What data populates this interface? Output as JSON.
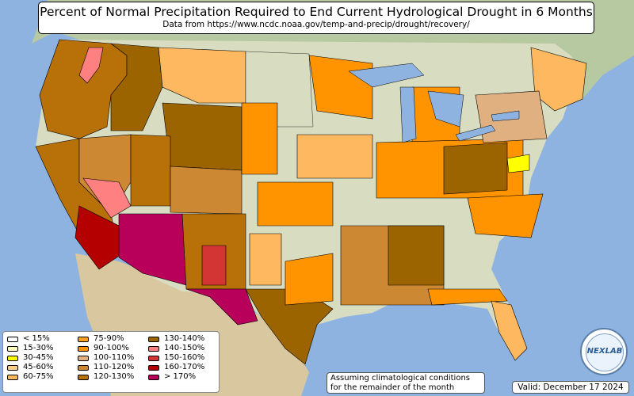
{
  "header": {
    "title": "Percent of Normal Precipitation Required to End Current Hydrological Drought in 6 Months",
    "subtitle": "Data from https://www.ncdc.noaa.gov/temp-and-precip/drought/recovery/"
  },
  "legend": {
    "items": [
      {
        "label": "< 15%",
        "color": "#ffffff"
      },
      {
        "label": "15-30%",
        "color": "#ffffc0"
      },
      {
        "label": "30-45%",
        "color": "#ffff00"
      },
      {
        "label": "45-60%",
        "color": "#fcd08a"
      },
      {
        "label": "60-75%",
        "color": "#fdb860"
      },
      {
        "label": "75-90%",
        "color": "#ffa01e"
      },
      {
        "label": "90-100%",
        "color": "#ff9400"
      },
      {
        "label": "100-110%",
        "color": "#e0b080"
      },
      {
        "label": "110-120%",
        "color": "#cc8833"
      },
      {
        "label": "120-130%",
        "color": "#b87008"
      },
      {
        "label": "130-140%",
        "color": "#9c6400"
      },
      {
        "label": "140-150%",
        "color": "#ff8080"
      },
      {
        "label": "150-160%",
        "color": "#d33434"
      },
      {
        "label": "160-170%",
        "color": "#b40000"
      },
      {
        "label": "> 170%",
        "color": "#b8005a"
      }
    ]
  },
  "notes": {
    "assumption": "Assuming climatological conditions for the remainder of the month",
    "valid": "Valid: December 17 2024"
  },
  "logo": {
    "text": "NEXLAB"
  }
}
